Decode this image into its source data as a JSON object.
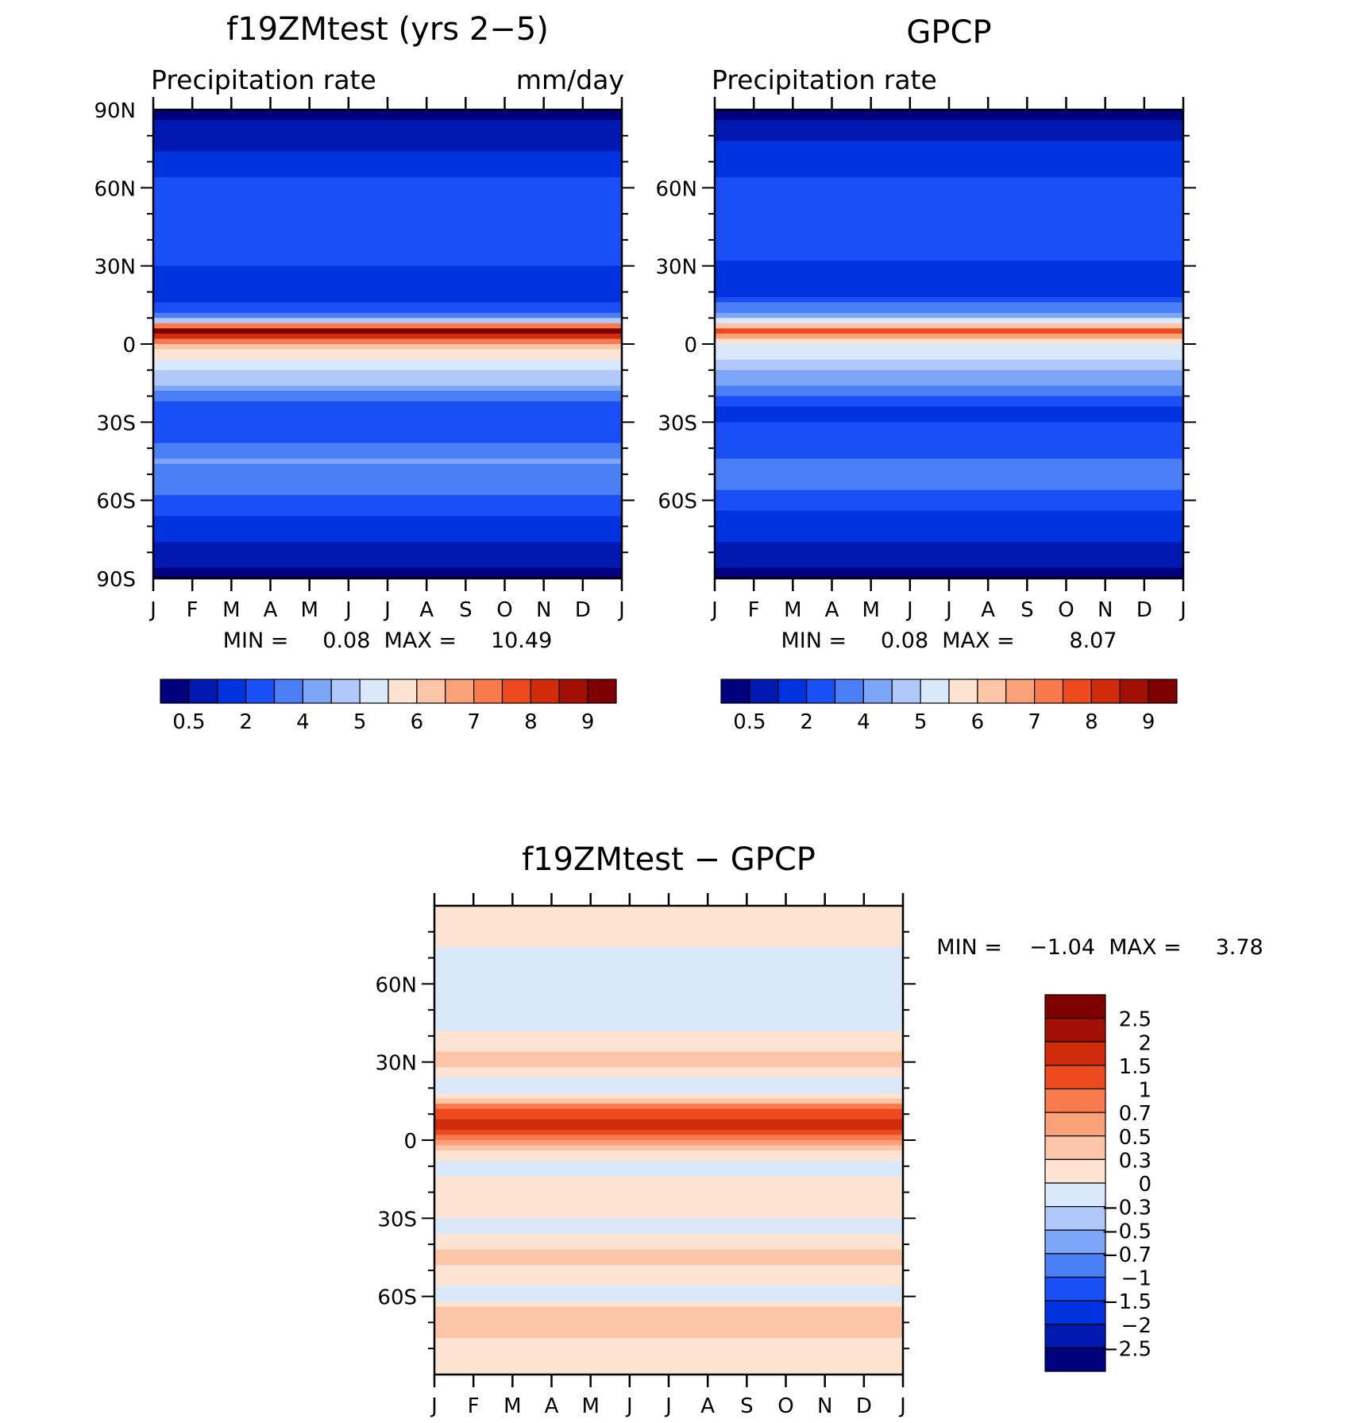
{
  "chart_data": [
    {
      "type": "heatmap",
      "title": "f19ZMtest (yrs 2−5)",
      "subtitle_left": "Precipitation rate",
      "subtitle_right": "mm/day",
      "x_ticks": [
        "J",
        "F",
        "M",
        "A",
        "M",
        "J",
        "J",
        "A",
        "S",
        "O",
        "N",
        "D",
        "J"
      ],
      "y_ticks": [
        "90N",
        "60N",
        "30N",
        "0",
        "30S",
        "60S",
        "90S"
      ],
      "stats": "MIN =     0.08  MAX =     10.49",
      "colorbar": {
        "orientation": "horizontal",
        "levels": [
          0.5,
          1,
          2,
          3,
          4,
          4.5,
          5,
          5.5,
          6,
          6.5,
          7,
          7.5,
          8,
          8.5,
          9
        ],
        "labels": [
          "0.5",
          "2",
          "4",
          "5",
          "6",
          "7",
          "8",
          "9"
        ],
        "colors": [
          "#00007f",
          "#0019b0",
          "#0032e0",
          "#1a4ff5",
          "#4a7ff7",
          "#7da6f8",
          "#b0c9fa",
          "#dae8fc",
          "#fde3d2",
          "#fcc5a8",
          "#fba17a",
          "#f97a4c",
          "#ee4a1f",
          "#d02c0c",
          "#a21005",
          "#7f0000"
        ]
      },
      "zonal_profile": [
        {
          "lat": 90,
          "value": 0.3
        },
        {
          "lat": 75,
          "value": 0.9
        },
        {
          "lat": 60,
          "value": 2.4
        },
        {
          "lat": 45,
          "value": 2.9
        },
        {
          "lat": 30,
          "value": 2.0
        },
        {
          "lat": 20,
          "value": 1.2
        },
        {
          "lat": 10,
          "value": 3.5
        },
        {
          "lat": 5,
          "value": 9.5
        },
        {
          "lat": 0,
          "value": 6.5
        },
        {
          "lat": -5,
          "value": 5.5
        },
        {
          "lat": -15,
          "value": 4.5
        },
        {
          "lat": -25,
          "value": 2.0
        },
        {
          "lat": -35,
          "value": 2.5
        },
        {
          "lat": -45,
          "value": 4.0
        },
        {
          "lat": -55,
          "value": 3.5
        },
        {
          "lat": -65,
          "value": 2.0
        },
        {
          "lat": -75,
          "value": 1.0
        },
        {
          "lat": -90,
          "value": 0.3
        }
      ]
    },
    {
      "type": "heatmap",
      "title": "GPCP",
      "subtitle_left": "Precipitation rate",
      "x_ticks": [
        "J",
        "F",
        "M",
        "A",
        "M",
        "J",
        "J",
        "A",
        "S",
        "O",
        "N",
        "D",
        "J"
      ],
      "y_ticks": [
        "60N",
        "30N",
        "0",
        "30S",
        "60S"
      ],
      "stats": "MIN =     0.08  MAX =        8.07",
      "colorbar": {
        "orientation": "horizontal",
        "levels": [
          0.5,
          1,
          2,
          3,
          4,
          4.5,
          5,
          5.5,
          6,
          6.5,
          7,
          7.5,
          8,
          8.5,
          9
        ],
        "labels": [
          "0.5",
          "2",
          "4",
          "5",
          "6",
          "7",
          "8",
          "9"
        ],
        "colors": [
          "#00007f",
          "#0019b0",
          "#0032e0",
          "#1a4ff5",
          "#4a7ff7",
          "#7da6f8",
          "#b0c9fa",
          "#dae8fc",
          "#fde3d2",
          "#fcc5a8",
          "#fba17a",
          "#f97a4c",
          "#ee4a1f",
          "#d02c0c",
          "#a21005",
          "#7f0000"
        ]
      },
      "zonal_profile": [
        {
          "lat": 90,
          "value": 0.3
        },
        {
          "lat": 75,
          "value": 1.2
        },
        {
          "lat": 60,
          "value": 2.2
        },
        {
          "lat": 45,
          "value": 2.8
        },
        {
          "lat": 30,
          "value": 1.8
        },
        {
          "lat": 20,
          "value": 1.5
        },
        {
          "lat": 10,
          "value": 4.5
        },
        {
          "lat": 5,
          "value": 7.5
        },
        {
          "lat": 0,
          "value": 5.0
        },
        {
          "lat": -5,
          "value": 5.0
        },
        {
          "lat": -15,
          "value": 4.0
        },
        {
          "lat": -25,
          "value": 1.8
        },
        {
          "lat": -35,
          "value": 2.2
        },
        {
          "lat": -45,
          "value": 3.0
        },
        {
          "lat": -55,
          "value": 3.0
        },
        {
          "lat": -65,
          "value": 1.8
        },
        {
          "lat": -75,
          "value": 1.0
        },
        {
          "lat": -90,
          "value": 0.3
        }
      ]
    },
    {
      "type": "heatmap",
      "title": "f19ZMtest − GPCP",
      "x_ticks": [
        "J",
        "F",
        "M",
        "A",
        "M",
        "J",
        "J",
        "A",
        "S",
        "O",
        "N",
        "D",
        "J"
      ],
      "y_ticks": [
        "60N",
        "30N",
        "0",
        "30S",
        "60S"
      ],
      "stats": "MIN =    −1.04  MAX =     3.78",
      "colorbar": {
        "orientation": "vertical",
        "levels": [
          2.5,
          2,
          1.5,
          1,
          0.7,
          0.5,
          0.3,
          0,
          -0.3,
          -0.5,
          -0.7,
          -1,
          -1.5,
          -2,
          -2.5
        ],
        "labels": [
          "2.5",
          "2",
          "1.5",
          "1",
          "0.7",
          "0.5",
          "0.3",
          "0",
          "−0.3",
          "−0.5",
          "−0.7",
          "−1",
          "−1.5",
          "−2",
          "−2.5"
        ],
        "colors": [
          "#7f0000",
          "#a21005",
          "#d02c0c",
          "#ee4a1f",
          "#f97a4c",
          "#fba17a",
          "#fcc5a8",
          "#fde3d2",
          "#dae8fc",
          "#b0c9fa",
          "#7da6f8",
          "#4a7ff7",
          "#1a4ff5",
          "#0032e0",
          "#0019b0",
          "#00007f"
        ]
      },
      "zonal_profile": [
        {
          "lat": 90,
          "value": 0.1
        },
        {
          "lat": 60,
          "value": -0.1
        },
        {
          "lat": 45,
          "value": -0.1
        },
        {
          "lat": 30,
          "value": 0.4
        },
        {
          "lat": 20,
          "value": -0.2
        },
        {
          "lat": 5,
          "value": 1.8
        },
        {
          "lat": 0,
          "value": 0.6
        },
        {
          "lat": -10,
          "value": -0.1
        },
        {
          "lat": -20,
          "value": 0.2
        },
        {
          "lat": -35,
          "value": -0.1
        },
        {
          "lat": -45,
          "value": 0.4
        },
        {
          "lat": -60,
          "value": -0.2
        },
        {
          "lat": -65,
          "value": 0.5
        },
        {
          "lat": -90,
          "value": 0.0
        }
      ]
    }
  ]
}
